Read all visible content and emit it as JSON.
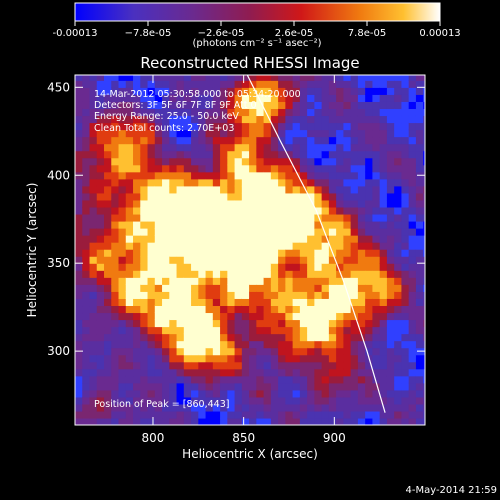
{
  "chart_data": {
    "type": "heatmap",
    "title": "Reconstructed RHESSI Image",
    "xlabel": "Heliocentric X (arcsec)",
    "ylabel": "Heliocentric Y (arcsec)",
    "xlim": [
      757,
      950
    ],
    "ylim": [
      258,
      457
    ],
    "x_ticks": [
      800,
      850,
      900
    ],
    "y_ticks": [
      300,
      350,
      400,
      450
    ],
    "colorbar": {
      "min": -0.00013,
      "max": 0.00013,
      "tick_values": [
        -0.00013,
        -7.8e-05,
        -2.6e-05,
        2.6e-05,
        7.8e-05,
        0.00013
      ],
      "tick_labels": [
        "-0.00013",
        "−7.8e-05",
        "−2.6e-05",
        "2.6e-05",
        "7.8e-05",
        "0.00013"
      ],
      "units_label": "(photons cm⁻² s⁻¹ asec⁻²)"
    },
    "annotations": [
      "14-Mar-2012 05:30:58.000 to 05:34:20.000",
      "Detectors: 3F 5F 6F 7F 8F 9F  Att 0",
      "Energy Range: 25.0 - 50.0 keV",
      "Clean     Total counts: 2.70E+03"
    ],
    "peak_label": "Position of Peak = [860,443]",
    "peak_position": [
      860,
      443
    ],
    "limb_curve": [
      [
        852,
        457
      ],
      [
        870,
        420
      ],
      [
        890,
        380
      ],
      [
        905,
        340
      ],
      [
        918,
        300
      ],
      [
        928,
        265
      ]
    ],
    "date_stamp": "4-May-2014 21:59",
    "palette": [
      "#0000ff",
      "#3040ff",
      "#4a33b0",
      "#5a2ea0",
      "#6a2a90",
      "#7a2670",
      "#9a1c3c",
      "#c0141e",
      "#e03c10",
      "#f07a10",
      "#ffc030",
      "#ffffd0"
    ]
  }
}
